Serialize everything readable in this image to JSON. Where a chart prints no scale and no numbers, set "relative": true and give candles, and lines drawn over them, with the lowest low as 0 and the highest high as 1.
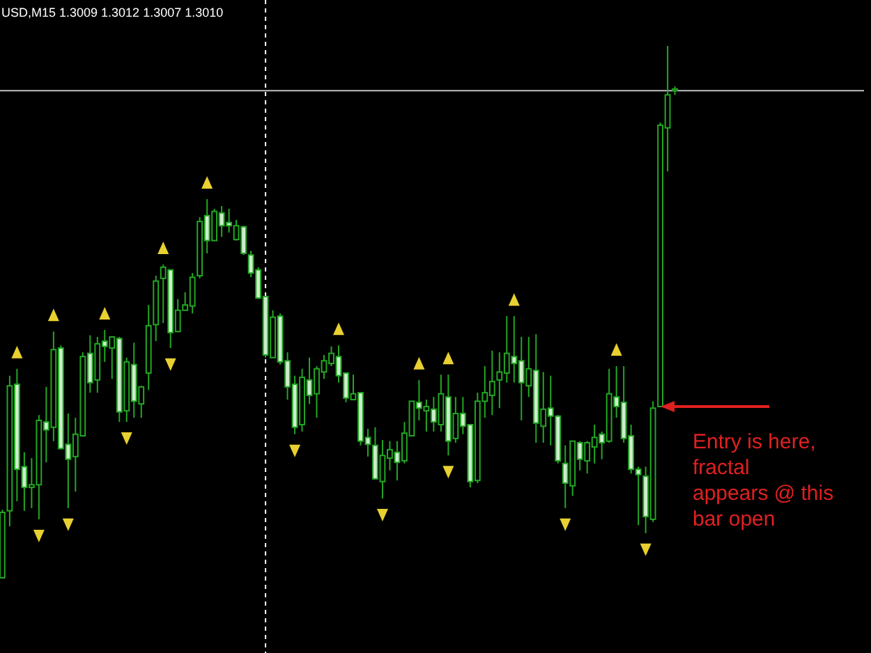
{
  "chart_data": {
    "type": "candlestick",
    "relative": true,
    "title": "USD,M15 1.3009 1.3012 1.3007 1.3010",
    "categories": [
      null,
      null,
      null,
      null,
      null,
      null,
      null,
      null,
      null,
      null,
      null,
      null,
      null,
      null,
      null,
      null,
      null,
      null,
      null,
      null,
      null,
      null,
      null,
      null,
      null,
      null,
      null,
      null,
      null,
      null,
      null,
      null,
      null,
      null,
      null,
      null,
      null,
      null,
      null,
      null,
      null,
      null,
      null,
      null,
      null,
      null,
      null,
      null,
      null,
      null,
      null,
      null,
      null,
      null,
      null,
      null,
      null,
      null,
      null,
      null,
      null,
      null,
      null,
      null,
      null,
      null,
      null,
      null,
      null,
      null,
      null,
      null,
      null,
      null,
      null,
      null,
      null,
      null,
      null,
      null,
      null,
      null,
      null,
      null,
      null,
      null,
      null,
      null,
      null,
      null,
      null,
      null,
      null
    ],
    "color": "#22a822",
    "ohlc": [
      [
        0,
        0.128,
        0,
        0.123
      ],
      [
        0.126,
        0.38,
        0.097,
        0.361
      ],
      [
        0.364,
        0.393,
        0.144,
        0.204
      ],
      [
        0.209,
        0.236,
        0.126,
        0.17
      ],
      [
        0.17,
        0.225,
        0.131,
        0.175
      ],
      [
        0.175,
        0.306,
        0.11,
        0.296
      ],
      [
        0.293,
        0.359,
        0.217,
        0.278
      ],
      [
        0.283,
        0.463,
        0.257,
        0.429
      ],
      [
        0.432,
        0.437,
        0.241,
        0.243
      ],
      [
        0.251,
        0.309,
        0.131,
        0.223
      ],
      [
        0.228,
        0.301,
        0.162,
        0.27
      ],
      [
        0.267,
        0.424,
        0.267,
        0.416
      ],
      [
        0.422,
        0.456,
        0.348,
        0.367
      ],
      [
        0.372,
        0.453,
        0.348,
        0.44
      ],
      [
        0.445,
        0.466,
        0.406,
        0.435
      ],
      [
        0.432,
        0.453,
        0.374,
        0.453
      ],
      [
        0.45,
        0.453,
        0.293,
        0.312
      ],
      [
        0.314,
        0.414,
        0.293,
        0.406
      ],
      [
        0.401,
        0.442,
        0.301,
        0.332
      ],
      [
        0.327,
        0.361,
        0.301,
        0.359
      ],
      [
        0.385,
        0.513,
        0.353,
        0.474
      ],
      [
        0.476,
        0.568,
        0.445,
        0.558
      ],
      [
        0.563,
        0.589,
        0.479,
        0.584
      ],
      [
        0.579,
        0.579,
        0.432,
        0.461
      ],
      [
        0.463,
        0.524,
        0.463,
        0.503
      ],
      [
        0.503,
        0.537,
        0.503,
        0.513
      ],
      [
        0.511,
        0.573,
        0.497,
        0.565
      ],
      [
        0.568,
        0.678,
        0.563,
        0.67
      ],
      [
        0.681,
        0.712,
        0.61,
        0.634
      ],
      [
        0.634,
        0.694,
        0.634,
        0.689
      ],
      [
        0.686,
        0.699,
        0.641,
        0.662
      ],
      [
        0.668,
        0.694,
        0.649,
        0.662
      ],
      [
        0.636,
        0.673,
        0.634,
        0.662
      ],
      [
        0.66,
        0.662,
        0.607,
        0.61
      ],
      [
        0.607,
        0.615,
        0.565,
        0.573
      ],
      [
        0.579,
        0.584,
        0.524,
        0.526
      ],
      [
        0.529,
        0.529,
        0.414,
        0.419
      ],
      [
        0.414,
        0.503,
        0.414,
        0.49
      ],
      [
        0.492,
        0.497,
        0.401,
        0.406
      ],
      [
        0.408,
        0.424,
        0.335,
        0.359
      ],
      [
        0.364,
        0.38,
        0.27,
        0.283
      ],
      [
        0.288,
        0.393,
        0.275,
        0.377
      ],
      [
        0.372,
        0.414,
        0.327,
        0.343
      ],
      [
        0.346,
        0.398,
        0.301,
        0.393
      ],
      [
        0.387,
        0.419,
        0.374,
        0.408
      ],
      [
        0.403,
        0.435,
        0.398,
        0.422
      ],
      [
        0.416,
        0.437,
        0.367,
        0.38
      ],
      [
        0.385,
        0.385,
        0.33,
        0.338
      ],
      [
        0.335,
        0.382,
        0.335,
        0.346
      ],
      [
        0.348,
        0.348,
        0.249,
        0.257
      ],
      [
        0.264,
        0.28,
        0.228,
        0.251
      ],
      [
        0.249,
        0.283,
        0.186,
        0.186
      ],
      [
        0.181,
        0.259,
        0.149,
        0.23
      ],
      [
        0.225,
        0.257,
        0.202,
        0.241
      ],
      [
        0.236,
        0.257,
        0.183,
        0.217
      ],
      [
        0.22,
        0.293,
        0.215,
        0.272
      ],
      [
        0.267,
        0.332,
        0.267,
        0.332
      ],
      [
        0.33,
        0.372,
        0.296,
        0.319
      ],
      [
        0.314,
        0.335,
        0.275,
        0.322
      ],
      [
        0.317,
        0.34,
        0.275,
        0.293
      ],
      [
        0.288,
        0.382,
        0.275,
        0.346
      ],
      [
        0.34,
        0.382,
        0.23,
        0.257
      ],
      [
        0.262,
        0.34,
        0.254,
        0.309
      ],
      [
        0.309,
        0.34,
        0.27,
        0.285
      ],
      [
        0.288,
        0.288,
        0.17,
        0.181
      ],
      [
        0.183,
        0.348,
        0.178,
        0.332
      ],
      [
        0.332,
        0.398,
        0.301,
        0.348
      ],
      [
        0.343,
        0.427,
        0.306,
        0.369
      ],
      [
        0.372,
        0.424,
        0.319,
        0.387
      ],
      [
        0.385,
        0.492,
        0.367,
        0.422
      ],
      [
        0.416,
        0.492,
        0.367,
        0.403
      ],
      [
        0.408,
        0.453,
        0.296,
        0.367
      ],
      [
        0.361,
        0.453,
        0.34,
        0.393
      ],
      [
        0.39,
        0.458,
        0.254,
        0.291
      ],
      [
        0.285,
        0.387,
        0.254,
        0.317
      ],
      [
        0.319,
        0.38,
        0.249,
        0.304
      ],
      [
        0.304,
        0.306,
        0.215,
        0.22
      ],
      [
        0.215,
        0.249,
        0.131,
        0.178
      ],
      [
        0.173,
        0.257,
        0.154,
        0.257
      ],
      [
        0.254,
        0.257,
        0.202,
        0.223
      ],
      [
        0.22,
        0.257,
        0.196,
        0.254
      ],
      [
        0.246,
        0.288,
        0.215,
        0.264
      ],
      [
        0.27,
        0.275,
        0.223,
        0.254
      ],
      [
        0.257,
        0.393,
        0.254,
        0.346
      ],
      [
        0.34,
        0.398,
        0.301,
        0.322
      ],
      [
        0.33,
        0.398,
        0.254,
        0.262
      ],
      [
        0.267,
        0.288,
        0.196,
        0.204
      ],
      [
        0.204,
        0.209,
        0.099,
        0.194
      ],
      [
        0.191,
        0.209,
        0.084,
        0.115
      ],
      [
        0.11,
        0.332,
        0.105,
        0.319
      ],
      [
        0.322,
        0.856,
        0.322,
        0.851
      ],
      [
        0.846,
        1,
        0.764,
        0.908
      ],
      [
        0.916,
        0.924,
        0.908,
        0.919
      ]
    ],
    "series": [
      {
        "type": "scatter",
        "color": "#e8d030",
        "marker": "triangle",
        "values": [
          null,
          null,
          0.423,
          null,
          null,
          null,
          null,
          0.493,
          null,
          null,
          null,
          null,
          null,
          null,
          0.496,
          null,
          null,
          null,
          null,
          null,
          null,
          null,
          0.619,
          null,
          null,
          null,
          null,
          null,
          0.742,
          null,
          null,
          null,
          null,
          null,
          null,
          null,
          null,
          null,
          null,
          null,
          null,
          null,
          null,
          null,
          null,
          null,
          0.467,
          null,
          null,
          null,
          null,
          null,
          null,
          null,
          null,
          null,
          null,
          0.402,
          null,
          null,
          null,
          0.412,
          null,
          null,
          null,
          null,
          null,
          null,
          null,
          null,
          0.522,
          null,
          null,
          null,
          null,
          null,
          null,
          null,
          null,
          null,
          null,
          null,
          null,
          null,
          0.428,
          null,
          null,
          null,
          null,
          null,
          null,
          null,
          null
        ]
      },
      {
        "type": "scatter",
        "color": "#e8d030",
        "marker": "triangle",
        "values": [
          null,
          null,
          null,
          null,
          null,
          0.08,
          null,
          null,
          null,
          0.101,
          null,
          null,
          null,
          null,
          null,
          null,
          null,
          0.263,
          null,
          null,
          null,
          null,
          null,
          0.402,
          null,
          null,
          null,
          null,
          null,
          null,
          null,
          null,
          null,
          null,
          null,
          null,
          null,
          null,
          null,
          null,
          0.24,
          null,
          null,
          null,
          null,
          null,
          null,
          null,
          null,
          null,
          null,
          null,
          0.119,
          null,
          null,
          null,
          null,
          null,
          null,
          null,
          null,
          0.2,
          null,
          null,
          null,
          null,
          null,
          null,
          null,
          null,
          null,
          null,
          null,
          null,
          null,
          null,
          null,
          0.101,
          null,
          null,
          null,
          null,
          null,
          null,
          null,
          null,
          null,
          null,
          0.054,
          null,
          null,
          null,
          null
        ]
      }
    ],
    "ref_lines": [
      {
        "axis": "y",
        "value": 0.916,
        "color": "#c0c0c0",
        "line_style": "solid"
      }
    ],
    "annotations": [
      "Entry is here, fractal appears @ this bar open"
    ]
  }
}
